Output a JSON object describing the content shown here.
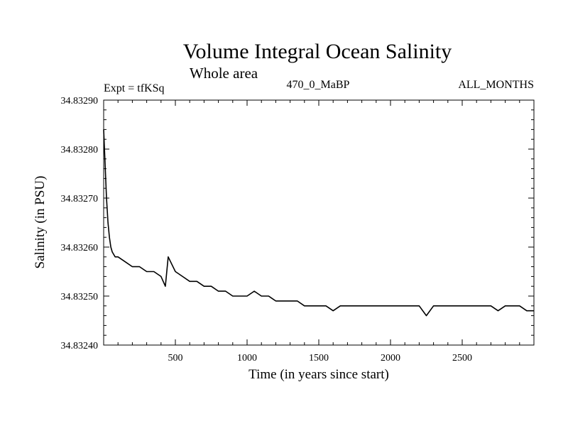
{
  "chart_data": {
    "type": "line",
    "title": "Volume Integral Ocean Salinity",
    "subtitle": "Whole area",
    "experiment_label": "Expt = tfKSq",
    "run_label": "470_0_MaBP",
    "period_label": "ALL_MONTHS",
    "xlabel": "Time (in years since start)",
    "ylabel": "Salinity (in PSU)",
    "xlim": [
      0,
      3000
    ],
    "ylim": [
      34.8324,
      34.8329
    ],
    "xticks": [
      500,
      1000,
      1500,
      2000,
      2500
    ],
    "yticks": [
      "34.83240",
      "34.83250",
      "34.83260",
      "34.83270",
      "34.83280",
      "34.83290"
    ],
    "grid": false,
    "series": [
      {
        "name": "Salinity",
        "color": "#000000",
        "x": [
          0,
          10,
          20,
          30,
          40,
          50,
          60,
          80,
          100,
          150,
          200,
          250,
          300,
          350,
          400,
          430,
          450,
          500,
          550,
          600,
          650,
          700,
          750,
          800,
          850,
          900,
          950,
          1000,
          1050,
          1100,
          1150,
          1200,
          1250,
          1300,
          1350,
          1400,
          1450,
          1500,
          1550,
          1600,
          1650,
          1700,
          1750,
          1800,
          1850,
          1900,
          1950,
          2000,
          2050,
          2100,
          2150,
          2200,
          2250,
          2300,
          2350,
          2400,
          2450,
          2500,
          2550,
          2600,
          2650,
          2700,
          2750,
          2800,
          2850,
          2900,
          2950,
          3000
        ],
        "values": [
          34.83284,
          34.83277,
          34.8327,
          34.83265,
          34.83262,
          34.8326,
          34.83259,
          34.83258,
          34.83258,
          34.83257,
          34.83256,
          34.83256,
          34.83255,
          34.83255,
          34.83254,
          34.83252,
          34.83258,
          34.83255,
          34.83254,
          34.83253,
          34.83253,
          34.83252,
          34.83252,
          34.83251,
          34.83251,
          34.8325,
          34.8325,
          34.8325,
          34.83251,
          34.8325,
          34.8325,
          34.83249,
          34.83249,
          34.83249,
          34.83249,
          34.83248,
          34.83248,
          34.83248,
          34.83248,
          34.83247,
          34.83248,
          34.83248,
          34.83248,
          34.83248,
          34.83248,
          34.83248,
          34.83248,
          34.83248,
          34.83248,
          34.83248,
          34.83248,
          34.83248,
          34.83246,
          34.83248,
          34.83248,
          34.83248,
          34.83248,
          34.83248,
          34.83248,
          34.83248,
          34.83248,
          34.83248,
          34.83247,
          34.83248,
          34.83248,
          34.83248,
          34.83247,
          34.83247
        ]
      }
    ]
  }
}
